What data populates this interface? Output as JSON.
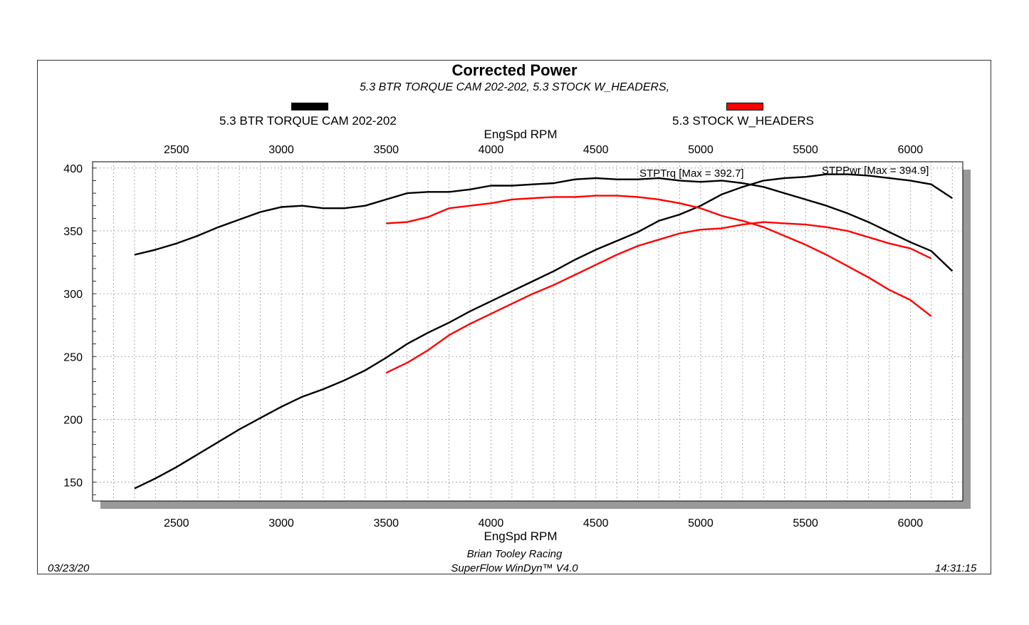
{
  "header": {
    "title": "Corrected Power",
    "subtitle": "5.3 BTR TORQUE CAM 202-202, 5.3 STOCK W_HEADERS,"
  },
  "legend": {
    "items": [
      {
        "label": "5.3 BTR TORQUE CAM 202-202",
        "color": "#000000"
      },
      {
        "label": "5.3 STOCK W_HEADERS",
        "color": "#ff0000"
      }
    ]
  },
  "footer": {
    "date": "03/23/20",
    "time": "14:31:15",
    "company": "Brian Tooley Racing",
    "software": "SuperFlow WinDyn™ V4.0"
  },
  "chart_data": {
    "type": "line",
    "title": "Corrected Power",
    "subtitle": "5.3 BTR TORQUE CAM 202-202, 5.3 STOCK W_HEADERS,",
    "xlabel": "EngSpd RPM",
    "ylabel": "",
    "xlim": [
      2100,
      6250
    ],
    "ylim": [
      135,
      405
    ],
    "xticks": [
      2500,
      3000,
      3500,
      4000,
      4500,
      5000,
      5500,
      6000
    ],
    "yticks": [
      150,
      200,
      250,
      300,
      350,
      400
    ],
    "grid": true,
    "legend_position": "top",
    "annotations": [
      {
        "text": "STPTrq [Max = 392.7]"
      },
      {
        "text": "STPPwr [Max = 394.9]"
      }
    ],
    "series": [
      {
        "name": "5.3 BTR TORQUE CAM 202-202",
        "quantity": "STPTrq",
        "color": "#000000",
        "x": [
          2300,
          2400,
          2500,
          2600,
          2700,
          2800,
          2900,
          3000,
          3100,
          3200,
          3300,
          3400,
          3500,
          3600,
          3700,
          3800,
          3900,
          4000,
          4100,
          4200,
          4300,
          4400,
          4500,
          4600,
          4700,
          4800,
          4900,
          5000,
          5100,
          5200,
          5300,
          5400,
          5500,
          5600,
          5700,
          5800,
          5900,
          6000,
          6100,
          6200
        ],
        "y": [
          331,
          335,
          340,
          346,
          353,
          359,
          365,
          369,
          370,
          368,
          368,
          370,
          375,
          380,
          381,
          381,
          383,
          386,
          386,
          387,
          388,
          391,
          392,
          391,
          391,
          392,
          390,
          389,
          390,
          388,
          385,
          380,
          375,
          370,
          364,
          357,
          349,
          341,
          334,
          318
        ]
      },
      {
        "name": "5.3 BTR TORQUE CAM 202-202",
        "quantity": "STPPwr",
        "color": "#000000",
        "x": [
          2300,
          2400,
          2500,
          2600,
          2700,
          2800,
          2900,
          3000,
          3100,
          3200,
          3300,
          3400,
          3500,
          3600,
          3700,
          3800,
          3900,
          4000,
          4100,
          4200,
          4300,
          4400,
          4500,
          4600,
          4700,
          4800,
          4900,
          5000,
          5100,
          5200,
          5300,
          5400,
          5500,
          5600,
          5700,
          5800,
          5900,
          6000,
          6100,
          6200
        ],
        "y": [
          145,
          153,
          162,
          172,
          182,
          192,
          201,
          210,
          218,
          224,
          231,
          239,
          249,
          260,
          269,
          277,
          286,
          294,
          302,
          310,
          318,
          327,
          335,
          342,
          349,
          358,
          363,
          370,
          379,
          385,
          390,
          392,
          393,
          395,
          395,
          394,
          392,
          390,
          387,
          376
        ]
      },
      {
        "name": "5.3 STOCK W_HEADERS",
        "quantity": "STPTrq",
        "color": "#ff0000",
        "x": [
          3500,
          3600,
          3700,
          3800,
          3900,
          4000,
          4100,
          4200,
          4300,
          4400,
          4500,
          4600,
          4700,
          4800,
          4900,
          5000,
          5100,
          5200,
          5300,
          5400,
          5500,
          5600,
          5700,
          5800,
          5900,
          6000,
          6100
        ],
        "y": [
          356,
          357,
          361,
          368,
          370,
          372,
          375,
          376,
          377,
          377,
          378,
          378,
          377,
          375,
          372,
          368,
          362,
          358,
          353,
          346,
          339,
          331,
          322,
          313,
          303,
          295,
          282
        ]
      },
      {
        "name": "5.3 STOCK W_HEADERS",
        "quantity": "STPPwr",
        "color": "#ff0000",
        "x": [
          3500,
          3600,
          3700,
          3800,
          3900,
          4000,
          4100,
          4200,
          4300,
          4400,
          4500,
          4600,
          4700,
          4800,
          4900,
          5000,
          5100,
          5200,
          5300,
          5400,
          5500,
          5600,
          5700,
          5800,
          5900,
          6000,
          6100
        ],
        "y": [
          237,
          245,
          255,
          267,
          276,
          284,
          292,
          300,
          307,
          315,
          323,
          331,
          338,
          343,
          348,
          351,
          352,
          355,
          357,
          356,
          355,
          353,
          350,
          345,
          340,
          336,
          328
        ]
      }
    ]
  }
}
